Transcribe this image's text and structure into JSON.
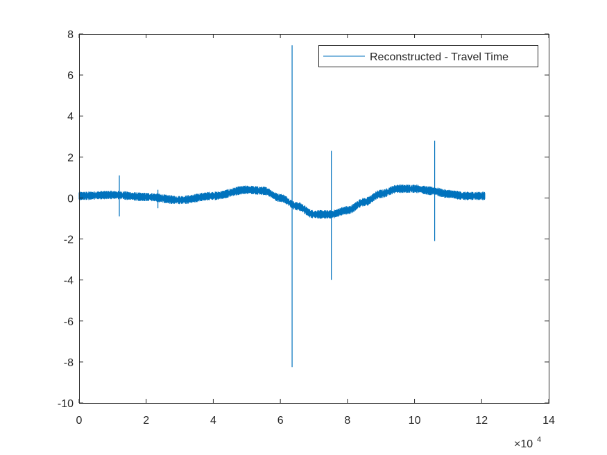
{
  "chart_data": {
    "type": "line",
    "title": "",
    "xlabel": "",
    "ylabel": "",
    "xlim": [
      0,
      140000
    ],
    "ylim": [
      -10,
      8
    ],
    "x_ticks": [
      0,
      20000,
      40000,
      60000,
      80000,
      100000,
      120000,
      140000
    ],
    "x_tick_labels": [
      "0",
      "2",
      "4",
      "6",
      "8",
      "10",
      "12",
      "14"
    ],
    "x_exponent_label": "×10",
    "x_exponent_power": "4",
    "y_ticks": [
      -10,
      -8,
      -6,
      -4,
      -2,
      0,
      2,
      4,
      6,
      8
    ],
    "y_tick_labels": [
      "-10",
      "-8",
      "-6",
      "-4",
      "-2",
      "0",
      "2",
      "4",
      "6",
      "8"
    ],
    "grid": false,
    "legend_position": "top-right",
    "series": [
      {
        "name": "Reconstructed - Travel Time",
        "color": "#0072BD",
        "x_range": [
          0,
          121000
        ],
        "baseline_trend": {
          "x": [
            0,
            10000,
            20000,
            30000,
            40000,
            50000,
            55000,
            60000,
            65000,
            70000,
            75000,
            80000,
            85000,
            90000,
            95000,
            100000,
            105000,
            110000,
            115000,
            121000
          ],
          "y": [
            0.1,
            0.15,
            0.05,
            -0.1,
            0.1,
            0.4,
            0.35,
            0.0,
            -0.4,
            -0.8,
            -0.8,
            -0.6,
            -0.2,
            0.2,
            0.45,
            0.45,
            0.35,
            0.2,
            0.1,
            0.1
          ]
        },
        "noise_amplitude": 0.15,
        "spikes": [
          {
            "x": 12000,
            "max": 1.1,
            "min": -0.9
          },
          {
            "x": 23500,
            "max": 0.4,
            "min": -0.5
          },
          {
            "x": 63500,
            "max": 7.45,
            "min": -8.25
          },
          {
            "x": 75200,
            "max": 2.3,
            "min": -4.0
          },
          {
            "x": 106000,
            "max": 2.8,
            "min": -2.1
          }
        ]
      }
    ]
  }
}
